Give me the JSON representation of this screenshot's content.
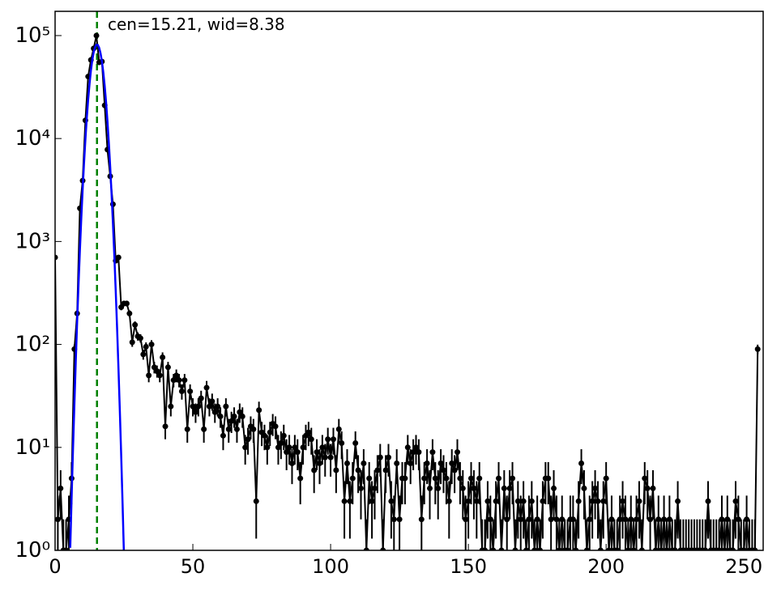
{
  "chart_data": {
    "type": "line",
    "annotation": "cen=15.21, wid=8.38",
    "annotation_color": "green",
    "vline": {
      "x": 15.21,
      "color": "green",
      "dashed": true
    },
    "log_y": true,
    "xlim": [
      0,
      257
    ],
    "ylim": [
      1,
      172000
    ],
    "xticks": [
      0,
      50,
      100,
      150,
      200,
      250
    ],
    "yticks": [
      {
        "value": 1,
        "label": "10⁰"
      },
      {
        "value": 10,
        "label": "10¹"
      },
      {
        "value": 100,
        "label": "10²"
      },
      {
        "value": 1000,
        "label": "10³"
      },
      {
        "value": 10000,
        "label": "10⁴"
      },
      {
        "value": 100000,
        "label": "10⁵"
      }
    ],
    "series": [
      {
        "color": "black",
        "markers": true,
        "x": [
          0,
          1,
          2,
          3,
          4,
          5,
          6,
          7,
          8,
          9,
          10,
          11,
          12,
          13,
          14,
          15,
          16,
          17,
          18,
          19,
          20,
          21,
          22,
          23,
          24,
          25,
          26,
          27,
          28,
          29,
          30,
          31,
          32,
          33,
          34,
          35,
          36,
          37,
          38,
          39,
          40,
          41,
          42,
          43,
          44,
          45,
          46,
          47,
          48,
          49,
          50,
          51,
          52,
          53,
          54,
          55,
          56,
          57,
          58,
          59,
          60,
          61,
          62,
          63,
          64,
          65,
          66,
          67,
          68,
          69,
          70,
          71,
          72,
          73,
          74,
          75,
          76,
          77,
          78,
          79,
          80,
          81,
          82,
          83,
          84,
          85,
          86,
          87,
          88,
          89,
          90,
          91,
          92,
          93,
          94,
          95,
          96,
          97,
          98,
          99,
          100,
          101,
          102,
          103,
          104,
          105,
          106,
          107,
          108,
          109,
          110,
          111,
          112,
          113,
          114,
          115,
          116,
          117,
          118,
          119,
          120,
          121,
          122,
          123,
          124,
          125,
          126,
          127,
          128,
          129,
          130,
          131,
          132,
          133,
          134,
          135,
          136,
          137,
          138,
          139,
          140,
          141,
          142,
          143,
          144,
          145,
          146,
          147,
          148,
          149,
          150,
          151,
          152,
          153,
          154,
          155,
          156,
          157,
          158,
          159,
          160,
          161,
          162,
          163,
          164,
          165,
          166,
          167,
          168,
          169,
          170,
          171,
          172,
          173,
          174,
          175,
          176,
          177,
          178,
          179,
          180,
          181,
          182,
          183,
          184,
          185,
          186,
          187,
          188,
          189,
          190,
          191,
          192,
          193,
          194,
          195,
          196,
          197,
          198,
          199,
          200,
          201,
          202,
          203,
          204,
          205,
          206,
          207,
          208,
          209,
          210,
          211,
          212,
          213,
          214,
          215,
          216,
          217,
          218,
          219,
          220,
          221,
          222,
          223,
          224,
          225,
          226,
          227,
          228,
          229,
          230,
          231,
          232,
          233,
          234,
          235,
          236,
          237,
          238,
          239,
          240,
          241,
          242,
          243,
          244,
          245,
          246,
          247,
          248,
          249,
          250,
          251,
          252,
          253,
          254,
          255
        ],
        "values": [
          700,
          2,
          4,
          1,
          1,
          2,
          5,
          90,
          200,
          2100,
          3900,
          15000,
          40000,
          58000,
          75000,
          100000,
          55000,
          56000,
          21000,
          7800,
          4300,
          2300,
          650,
          700,
          230,
          250,
          250,
          200,
          105,
          155,
          120,
          115,
          80,
          95,
          50,
          100,
          60,
          55,
          50,
          75,
          16,
          60,
          25,
          45,
          50,
          45,
          35,
          45,
          15,
          35,
          25,
          22,
          25,
          30,
          15,
          38,
          25,
          28,
          22,
          25,
          20,
          13,
          25,
          15,
          18,
          20,
          15,
          22,
          20,
          10,
          12,
          16,
          15,
          3,
          23,
          14,
          13,
          10,
          14,
          17,
          16,
          10,
          11,
          13,
          9,
          10,
          7,
          10,
          9,
          5,
          10,
          13,
          14,
          12,
          6,
          9,
          7,
          10,
          8,
          12,
          8,
          12,
          6,
          15,
          11,
          3,
          7,
          3,
          5,
          11,
          6,
          4,
          7,
          1,
          5,
          3,
          4,
          6,
          8,
          1,
          6,
          8,
          3,
          2,
          7,
          2,
          5,
          5,
          10,
          7,
          9,
          10,
          9,
          2,
          5,
          7,
          4,
          9,
          5,
          4,
          7,
          6,
          5,
          3,
          7,
          6,
          9,
          5,
          4,
          2,
          3,
          5,
          4,
          3,
          5,
          1,
          1,
          3,
          2,
          1,
          3,
          5,
          1,
          4,
          2,
          4,
          5,
          1,
          3,
          2,
          3,
          1,
          2,
          3,
          1,
          2,
          1,
          3,
          5,
          5,
          2,
          4,
          2,
          1,
          2,
          1,
          1,
          2,
          2,
          1,
          3,
          7,
          4,
          1,
          2,
          3,
          4,
          3,
          1,
          3,
          5,
          1,
          2,
          1,
          1,
          2,
          3,
          2,
          1,
          2,
          1,
          2,
          3,
          1,
          5,
          4,
          2,
          4,
          1,
          2,
          1,
          2,
          1,
          2,
          1,
          1,
          3,
          1,
          1,
          1,
          1,
          1,
          1,
          1,
          1,
          1,
          1,
          3,
          1,
          1,
          1,
          1,
          2,
          1,
          2,
          1,
          1,
          3,
          2,
          1,
          1,
          2,
          1,
          1,
          1,
          90
        ],
        "errors": [
          26.5,
          1.4,
          2,
          1,
          1,
          1.4,
          2.2,
          9.5,
          14.1,
          45.8,
          62.4,
          122.5,
          200,
          240.8,
          273.9,
          316.2,
          234.5,
          236.6,
          144.9,
          88.3,
          65.6,
          48,
          25.5,
          26.5,
          15.2,
          15.8,
          15.8,
          14.1,
          10.2,
          12.4,
          11,
          10.7,
          8.9,
          9.7,
          7.1,
          10,
          7.7,
          7.4,
          7.1,
          8.7,
          4,
          7.7,
          5,
          6.7,
          7.1,
          6.7,
          5.9,
          6.7,
          3.9,
          5.9,
          5,
          4.7,
          5,
          5.5,
          3.9,
          6.2,
          5,
          5.3,
          4.7,
          5,
          4.5,
          3.6,
          5,
          3.9,
          4.2,
          4.5,
          3.9,
          4.7,
          4.5,
          3.2,
          3.5,
          4,
          3.9,
          1.7,
          4.8,
          3.7,
          3.6,
          3.2,
          3.7,
          4.1,
          4,
          3.2,
          3.3,
          3.6,
          3,
          3.2,
          2.6,
          3.2,
          3,
          2.2,
          3.2,
          3.6,
          3.7,
          3.5,
          2.4,
          3,
          2.6,
          3.2,
          2.8,
          3.5,
          2.8,
          3.5,
          2.4,
          3.9,
          3.3,
          1.7,
          2.6,
          1.7,
          2.2,
          3.3,
          2.4,
          2,
          2.6,
          1,
          2.2,
          1.7,
          2,
          2.4,
          2.8,
          1,
          2.4,
          2.8,
          1.7,
          1.4,
          2.6,
          1.4,
          2.2,
          2.2,
          3.2,
          2.6,
          3,
          3.2,
          3,
          1.4,
          2.2,
          2.6,
          2,
          3,
          2.2,
          2,
          2.6,
          2.4,
          2.2,
          1.7,
          2.6,
          2.4,
          3,
          2.2,
          2,
          1.4,
          1.7,
          2.2,
          2,
          1.7,
          2.2,
          1,
          1,
          1.7,
          1.4,
          1,
          1.7,
          2.2,
          1,
          2,
          1.4,
          2,
          2.2,
          1,
          1.7,
          1.4,
          1.7,
          1,
          1.4,
          1.7,
          1,
          1.4,
          1,
          1.7,
          2.2,
          2.2,
          1.4,
          2,
          1.4,
          1,
          1.4,
          1,
          1,
          1.4,
          1.4,
          1,
          1.7,
          2.6,
          2,
          1,
          1.4,
          1.7,
          2,
          1.7,
          1,
          1.7,
          2.2,
          1,
          1.4,
          1,
          1,
          1.4,
          1.7,
          1.4,
          1,
          1.4,
          1,
          1.4,
          1.7,
          1,
          2.2,
          2,
          1.4,
          2,
          1,
          1.4,
          1,
          1.4,
          1,
          1.4,
          1,
          1,
          1.7,
          1,
          1,
          1,
          1,
          1,
          1,
          1,
          1,
          1,
          1,
          1.7,
          1,
          1,
          1,
          1,
          1.4,
          1,
          1.4,
          1,
          1,
          1.7,
          1.4,
          1,
          1,
          1.4,
          1,
          1,
          1,
          9.5
        ]
      },
      {
        "color": "blue",
        "x": [
          5.5,
          6,
          6.5,
          7,
          7.5,
          8,
          8.5,
          9,
          9.5,
          10,
          10.5,
          11,
          11.5,
          12,
          12.5,
          13,
          13.5,
          14,
          14.5,
          15,
          15.5,
          16,
          16.5,
          17,
          17.5,
          18,
          18.5,
          19,
          19.5,
          20,
          20.5,
          21,
          21.5,
          22,
          22.5,
          23,
          23.5,
          24,
          24.5,
          25
        ],
        "values": [
          1.06,
          3.3,
          9.6,
          26,
          68,
          166,
          380,
          820,
          1670,
          3200,
          5770,
          9800,
          15800,
          23900,
          33900,
          45700,
          57800,
          68800,
          77200,
          81600,
          81200,
          76100,
          67200,
          56000,
          43800,
          32400,
          22600,
          14800,
          9100,
          5300,
          2900,
          1500,
          730,
          335,
          145,
          59,
          22.6,
          8.2,
          2.8,
          0.88
        ]
      }
    ]
  }
}
